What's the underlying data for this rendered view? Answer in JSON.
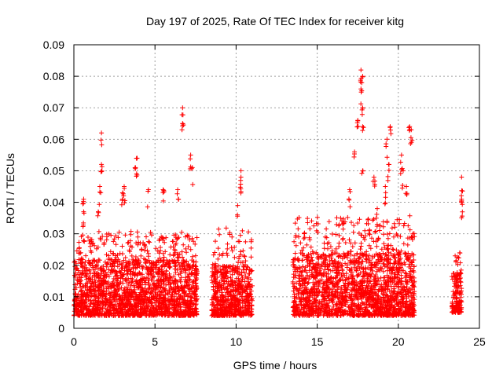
{
  "chart_data": {
    "type": "scatter",
    "title": "Day 197 of 2025, Rate Of TEC Index for receiver kitg",
    "xlabel": "GPS time / hours",
    "ylabel": "ROTI / TECUs",
    "xlim": [
      0,
      25
    ],
    "ylim": [
      0,
      0.09
    ],
    "x_ticks": [
      0,
      5,
      10,
      15,
      20,
      25
    ],
    "x_tick_labels": [
      "0",
      "5",
      "10",
      "15",
      "20",
      "25"
    ],
    "y_ticks": [
      0,
      0.01,
      0.02,
      0.03,
      0.04,
      0.05,
      0.06,
      0.07,
      0.08,
      0.09
    ],
    "y_tick_labels": [
      "0",
      "0.01",
      "0.02",
      "0.03",
      "0.04",
      "0.05",
      "0.06",
      "0.07",
      "0.08",
      "0.09"
    ],
    "grid": true,
    "marker": "+",
    "color": "#ff0000",
    "data_segments": [
      {
        "x_range": [
          0.0,
          7.6
        ],
        "bulk_range": [
          0.004,
          0.022
        ],
        "peak": 0.03
      },
      {
        "x_range": [
          8.5,
          11.0
        ],
        "bulk_range": [
          0.004,
          0.02
        ],
        "peak": 0.031
      },
      {
        "x_range": [
          13.5,
          21.0
        ],
        "bulk_range": [
          0.004,
          0.024
        ],
        "peak": 0.035
      },
      {
        "x_range": [
          23.3,
          23.9
        ],
        "bulk_range": [
          0.005,
          0.018
        ],
        "peak": 0.024
      }
    ],
    "notable_points": [
      {
        "x": 0.6,
        "y": 0.041
      },
      {
        "x": 0.6,
        "y": 0.037
      },
      {
        "x": 1.5,
        "y": 0.037
      },
      {
        "x": 1.6,
        "y": 0.045
      },
      {
        "x": 1.7,
        "y": 0.062
      },
      {
        "x": 1.7,
        "y": 0.052
      },
      {
        "x": 3.0,
        "y": 0.043
      },
      {
        "x": 3.1,
        "y": 0.045
      },
      {
        "x": 3.8,
        "y": 0.051
      },
      {
        "x": 3.9,
        "y": 0.054
      },
      {
        "x": 4.6,
        "y": 0.044
      },
      {
        "x": 5.5,
        "y": 0.044
      },
      {
        "x": 6.4,
        "y": 0.044
      },
      {
        "x": 6.7,
        "y": 0.065
      },
      {
        "x": 6.7,
        "y": 0.07
      },
      {
        "x": 7.2,
        "y": 0.055
      },
      {
        "x": 7.3,
        "y": 0.051
      },
      {
        "x": 10.1,
        "y": 0.039
      },
      {
        "x": 10.3,
        "y": 0.05
      },
      {
        "x": 10.3,
        "y": 0.048
      },
      {
        "x": 17.0,
        "y": 0.044
      },
      {
        "x": 17.3,
        "y": 0.056
      },
      {
        "x": 17.5,
        "y": 0.066
      },
      {
        "x": 17.7,
        "y": 0.082
      },
      {
        "x": 17.8,
        "y": 0.08
      },
      {
        "x": 17.7,
        "y": 0.076
      },
      {
        "x": 17.8,
        "y": 0.07
      },
      {
        "x": 17.8,
        "y": 0.064
      },
      {
        "x": 17.8,
        "y": 0.05
      },
      {
        "x": 18.5,
        "y": 0.048
      },
      {
        "x": 18.7,
        "y": 0.038
      },
      {
        "x": 19.2,
        "y": 0.045
      },
      {
        "x": 19.3,
        "y": 0.06
      },
      {
        "x": 19.5,
        "y": 0.064
      },
      {
        "x": 19.4,
        "y": 0.052
      },
      {
        "x": 20.2,
        "y": 0.055
      },
      {
        "x": 20.3,
        "y": 0.05
      },
      {
        "x": 20.5,
        "y": 0.045
      },
      {
        "x": 20.7,
        "y": 0.064
      },
      {
        "x": 20.8,
        "y": 0.063
      },
      {
        "x": 23.9,
        "y": 0.048
      },
      {
        "x": 23.9,
        "y": 0.041
      },
      {
        "x": 23.9,
        "y": 0.04
      }
    ]
  }
}
